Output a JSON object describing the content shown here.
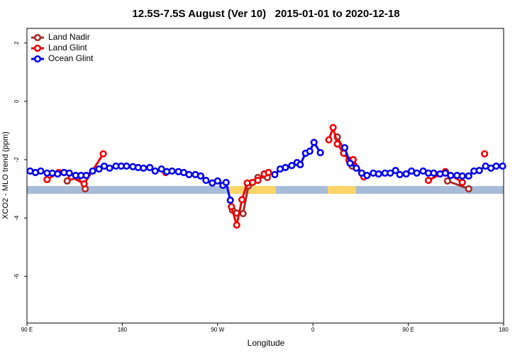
{
  "chart_data": {
    "type": "line",
    "title": "12.5S-7.5S August (Ver 10)   2015-01-01 to 2020-12-18",
    "x_label": "Longitude",
    "y_label": "XCO2 - MLO trend (ppm)",
    "xlim": [
      90,
      540
    ],
    "ylim": [
      -7.6,
      2.5
    ],
    "xticks": [
      {
        "value": 90,
        "label": "90 E"
      },
      180,
      {
        "value": 270,
        "label": "90 W"
      },
      {
        "value": 360,
        "label": "0"
      },
      {
        "value": 450,
        "label": "90 E"
      },
      {
        "value": 540,
        "label": "180"
      }
    ],
    "yticks": [
      2,
      0,
      -2,
      -4,
      -6
    ],
    "legend": "top-left",
    "series": [
      {
        "name": "Land Nadir",
        "color": "#a52a2a",
        "x": [
          128,
          138,
          145,
          200,
          284,
          288,
          294,
          299,
          308,
          317,
          350,
          383,
          389,
          397,
          450,
          487,
          507
        ],
        "values": [
          -2.73,
          -2.59,
          -3,
          null,
          -3.73,
          -3.83,
          -3.85,
          -2.9,
          -2.61,
          -2.61,
          null,
          -1.22,
          -1.63,
          -2.22,
          null,
          -2.73,
          -3
        ]
      },
      {
        "name": "Land Glint",
        "color": "#ee0000",
        "x": [
          109,
          120,
          125,
          132,
          144,
          162,
          170,
          221,
          250,
          283,
          288,
          293,
          298,
          303,
          308,
          314,
          318,
          340,
          375,
          379,
          383,
          389,
          394,
          398,
          408,
          440,
          469,
          485,
          501,
          510,
          522
        ],
        "values": [
          -2.68,
          -2.44,
          -2.44,
          -2.59,
          -2.83,
          -1.8,
          null,
          -2.44,
          null,
          -3.61,
          -4.24,
          -3.37,
          -2.8,
          -2.78,
          -2.71,
          -2.49,
          -2.44,
          null,
          -1.32,
          -0.9,
          -1.46,
          -1.78,
          -2.02,
          -2,
          -2.59,
          null,
          -2.71,
          -2.41,
          -2.78,
          null,
          -1.8
        ]
      },
      {
        "name": "Ocean Glint",
        "color": "#0000ee",
        "x": [
          93,
          98,
          103,
          109,
          114,
          119,
          125,
          130,
          136,
          141,
          146,
          152,
          158,
          163,
          168,
          174,
          179,
          184,
          190,
          195,
          200,
          206,
          211,
          217,
          222,
          227,
          233,
          238,
          243,
          249,
          254,
          259,
          265,
          270,
          275,
          278,
          282,
          300,
          324,
          329,
          334,
          340,
          345,
          348,
          353,
          357,
          361,
          367,
          380,
          390,
          395,
          401,
          406,
          411,
          417,
          422,
          428,
          433,
          438,
          442,
          448,
          453,
          458,
          464,
          469,
          474,
          480,
          485,
          490,
          496,
          501,
          507,
          512,
          517,
          523,
          528,
          533,
          539
        ],
        "values": [
          -2.39,
          -2.44,
          -2.39,
          -2.46,
          -2.46,
          -2.49,
          -2.44,
          -2.46,
          -2.54,
          -2.54,
          -2.54,
          -2.39,
          -2.32,
          -2.22,
          -2.29,
          -2.22,
          -2.22,
          -2.22,
          -2.24,
          -2.27,
          -2.29,
          -2.27,
          -2.39,
          -2.32,
          -2.41,
          -2.39,
          -2.41,
          -2.44,
          -2.51,
          -2.51,
          -2.56,
          -2.71,
          -2.8,
          -2.73,
          -2.88,
          -2.78,
          -3.39,
          null,
          -2.51,
          -2.32,
          -2.27,
          -2.2,
          -2.1,
          -2.17,
          -1.78,
          -1.71,
          -1.41,
          -1.76,
          null,
          -1.59,
          -2.12,
          -2.29,
          -2.46,
          -2.54,
          -2.46,
          -2.49,
          -2.46,
          -2.46,
          -2.37,
          -2.51,
          -2.49,
          -2.39,
          -2.46,
          -2.39,
          -2.46,
          -2.46,
          -2.49,
          -2.46,
          -2.54,
          -2.54,
          -2.56,
          -2.56,
          -2.39,
          -2.37,
          -2.22,
          -2.29,
          -2.22,
          -2.22
        ]
      }
    ]
  }
}
